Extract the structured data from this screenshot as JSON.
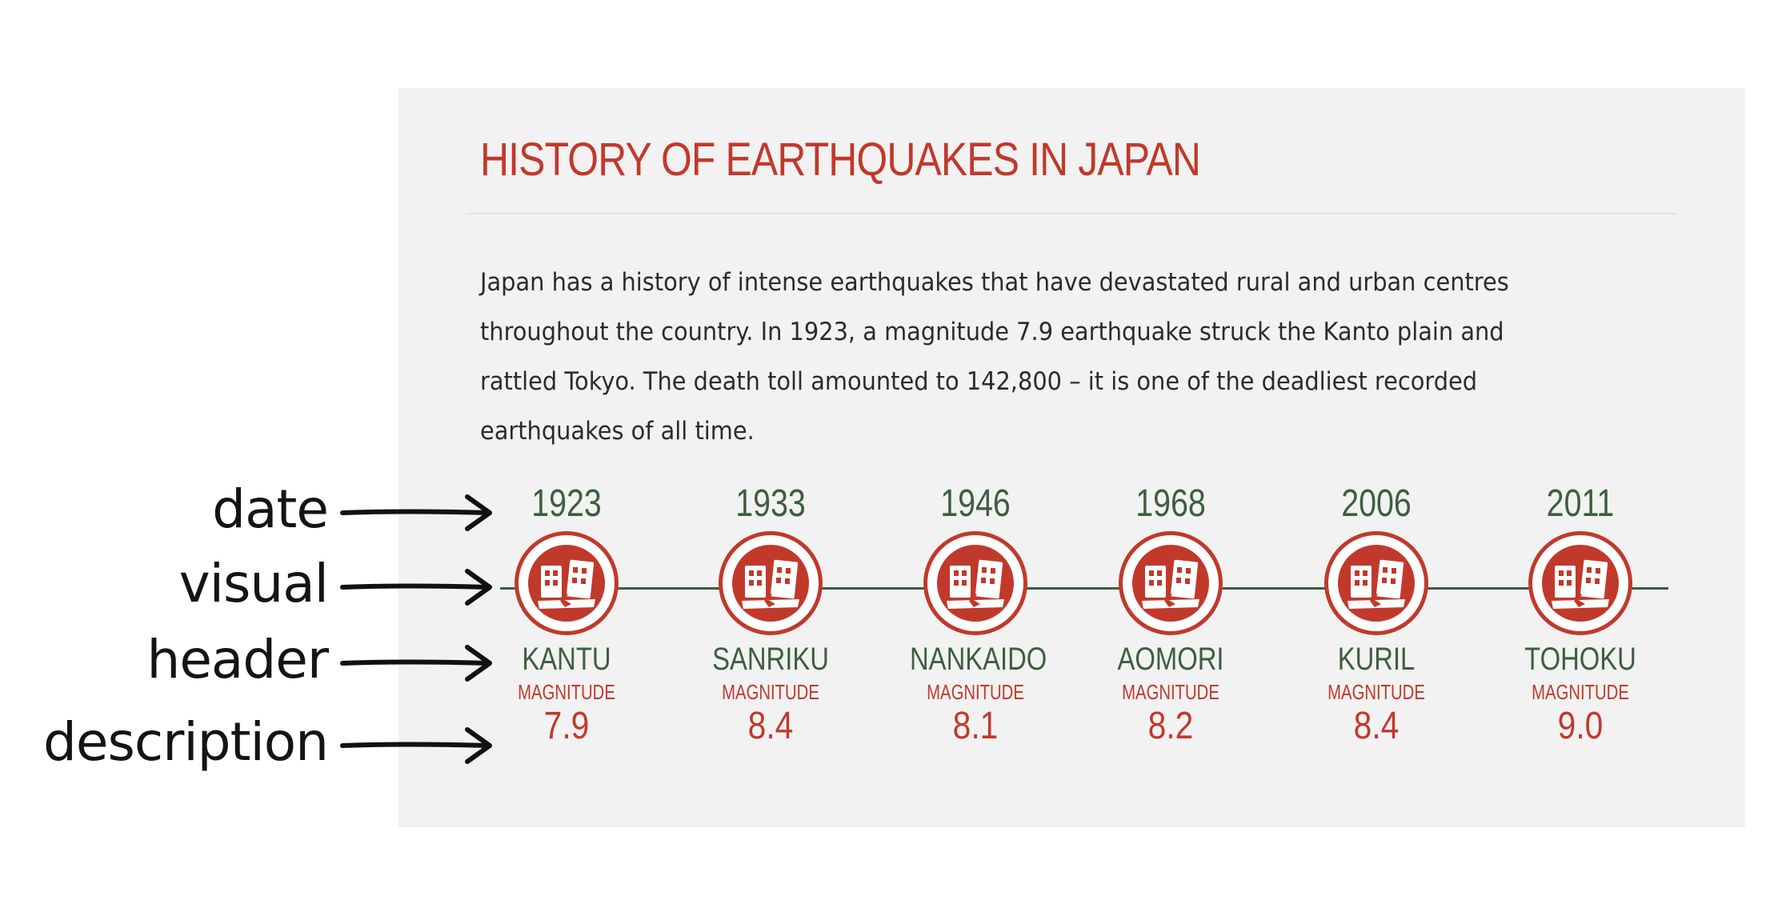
{
  "colors": {
    "accent_red": "#c1392b",
    "accent_green": "#3d5e3f",
    "panel_bg": "#f2f2f2",
    "body_text": "#2b2b2b"
  },
  "infographic": {
    "title": "HISTORY OF EARTHQUAKES IN JAPAN",
    "intro": "Japan has a history of intense earthquakes that have devastated rural and urban centres throughout the country. In 1923, a magnitude 7.9 earthquake struck the Kanto plain and rattled Tokyo. The death toll amounted to 142,800 – it is one of the deadliest recorded earthquakes of all time.",
    "magnitude_label": "MAGNITUDE",
    "icon": "earthquake-building-icon",
    "events": [
      {
        "year": "1923",
        "name": "KANTU",
        "magnitude": "7.9"
      },
      {
        "year": "1933",
        "name": "SANRIKU",
        "magnitude": "8.4"
      },
      {
        "year": "1946",
        "name": "NANKAIDO",
        "magnitude": "8.1"
      },
      {
        "year": "1968",
        "name": "AOMORI",
        "magnitude": "8.2"
      },
      {
        "year": "2006",
        "name": "KURIL",
        "magnitude": "8.4"
      },
      {
        "year": "2011",
        "name": "TOHOKU",
        "magnitude": "9.0"
      }
    ]
  },
  "annotations": [
    {
      "label": "date",
      "arrow": "arrow-right-icon"
    },
    {
      "label": "visual",
      "arrow": "arrow-right-icon"
    },
    {
      "label": "header",
      "arrow": "arrow-right-icon"
    },
    {
      "label": "description",
      "arrow": "arrow-right-icon"
    }
  ]
}
